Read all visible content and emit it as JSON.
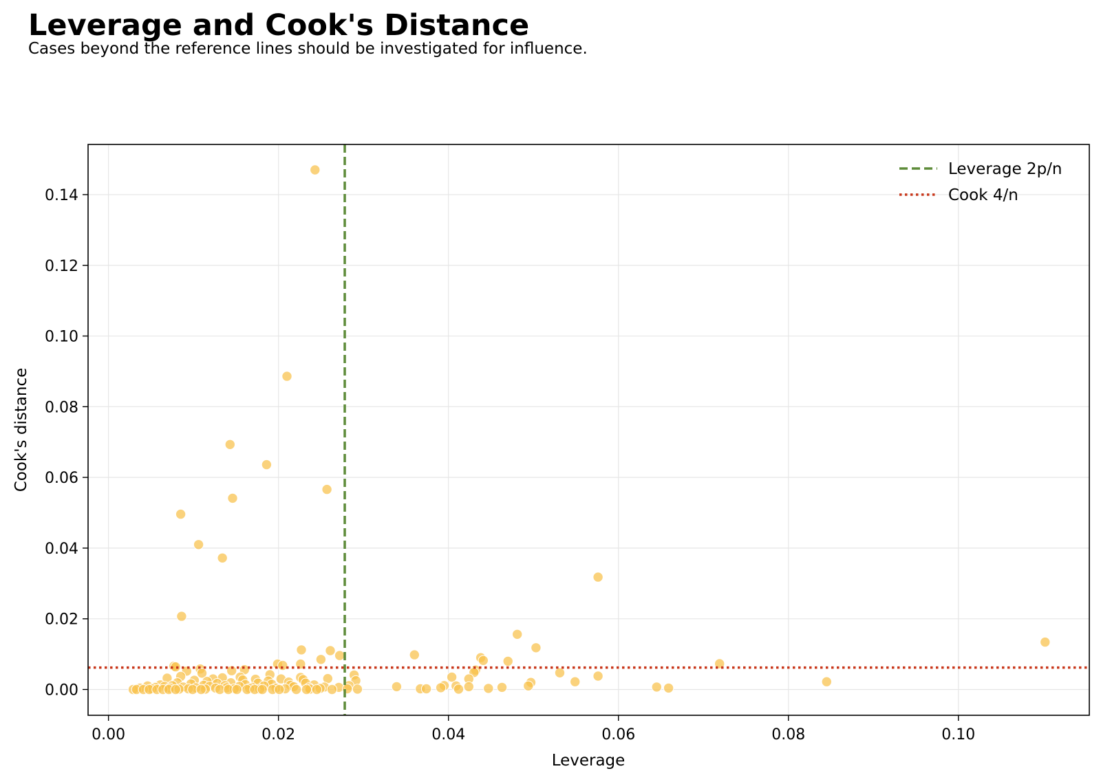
{
  "header": {
    "title": "Leverage and Cook's Distance",
    "subtitle": "Cases beyond the reference lines should be investigated for influence."
  },
  "chart_data": {
    "type": "scatter",
    "xlabel": "Leverage",
    "ylabel": "Cook's distance",
    "xlim": [
      -0.0024,
      0.1154
    ],
    "ylim": [
      -0.0073,
      0.1542
    ],
    "x_ticks": [
      0.0,
      0.02,
      0.04,
      0.06,
      0.08,
      0.1
    ],
    "x_tick_labels": [
      "0.00",
      "0.02",
      "0.04",
      "0.06",
      "0.08",
      "0.10"
    ],
    "y_ticks": [
      0.0,
      0.02,
      0.04,
      0.06,
      0.08,
      0.1,
      0.12,
      0.14
    ],
    "y_tick_labels": [
      "0.00",
      "0.02",
      "0.04",
      "0.06",
      "0.08",
      "0.10",
      "0.12",
      "0.14"
    ],
    "grid": true,
    "legend_position": "top-right",
    "point_color": "#F8C04A",
    "reference_lines": [
      {
        "name": "Leverage 2p/n",
        "orientation": "vertical",
        "value": 0.0278,
        "style": "dashed",
        "color": "#5E8C3A"
      },
      {
        "name": "Cook 4/n",
        "orientation": "horizontal",
        "value": 0.0062,
        "style": "dotted",
        "color": "#C8361A"
      }
    ],
    "legend": [
      {
        "label": "Leverage 2p/n",
        "style": "dashed",
        "color": "#5E8C3A"
      },
      {
        "label": "Cook 4/n",
        "style": "dotted",
        "color": "#C8361A"
      }
    ],
    "points": [
      [
        0.0243,
        0.147
      ],
      [
        0.021,
        0.0886
      ],
      [
        0.0143,
        0.0693
      ],
      [
        0.0186,
        0.0636
      ],
      [
        0.0257,
        0.0566
      ],
      [
        0.0146,
        0.0541
      ],
      [
        0.0085,
        0.0496
      ],
      [
        0.0106,
        0.041
      ],
      [
        0.0134,
        0.0372
      ],
      [
        0.0576,
        0.0318
      ],
      [
        0.0086,
        0.0207
      ],
      [
        0.0481,
        0.0156
      ],
      [
        0.1102,
        0.0134
      ],
      [
        0.0503,
        0.0118
      ],
      [
        0.0227,
        0.0112
      ],
      [
        0.0261,
        0.011
      ],
      [
        0.036,
        0.0098
      ],
      [
        0.0272,
        0.0096
      ],
      [
        0.0438,
        0.009
      ],
      [
        0.025,
        0.0085
      ],
      [
        0.0441,
        0.0082
      ],
      [
        0.047,
        0.008
      ],
      [
        0.0719,
        0.0073
      ],
      [
        0.0199,
        0.0072
      ],
      [
        0.0226,
        0.0072
      ],
      [
        0.0205,
        0.0068
      ],
      [
        0.0077,
        0.0066
      ],
      [
        0.0079,
        0.0064
      ],
      [
        0.0108,
        0.0058
      ],
      [
        0.016,
        0.0056
      ],
      [
        0.0432,
        0.0055
      ],
      [
        0.0145,
        0.0053
      ],
      [
        0.0092,
        0.0052
      ],
      [
        0.043,
        0.0048
      ],
      [
        0.0531,
        0.0047
      ],
      [
        0.011,
        0.0046
      ],
      [
        0.019,
        0.0042
      ],
      [
        0.0289,
        0.0041
      ],
      [
        0.0576,
        0.0038
      ],
      [
        0.0085,
        0.0037
      ],
      [
        0.0155,
        0.0035
      ],
      [
        0.0404,
        0.0035
      ],
      [
        0.0226,
        0.0034
      ],
      [
        0.0134,
        0.0033
      ],
      [
        0.0069,
        0.0032
      ],
      [
        0.0258,
        0.0031
      ],
      [
        0.0203,
        0.003
      ],
      [
        0.0123,
        0.003
      ],
      [
        0.0424,
        0.003
      ],
      [
        0.0173,
        0.0029
      ],
      [
        0.0229,
        0.0028
      ],
      [
        0.0158,
        0.0027
      ],
      [
        0.0101,
        0.0026
      ],
      [
        0.0291,
        0.0025
      ],
      [
        0.0188,
        0.0024
      ],
      [
        0.0116,
        0.0023
      ],
      [
        0.0549,
        0.0022
      ],
      [
        0.0845,
        0.0022
      ],
      [
        0.0212,
        0.0021
      ],
      [
        0.0497,
        0.002
      ],
      [
        0.0081,
        0.0019
      ],
      [
        0.0144,
        0.0019
      ],
      [
        0.0176,
        0.0018
      ],
      [
        0.0232,
        0.0018
      ],
      [
        0.0128,
        0.0017
      ],
      [
        0.0097,
        0.0016
      ],
      [
        0.0192,
        0.0015
      ],
      [
        0.0161,
        0.0014
      ],
      [
        0.0061,
        0.0013
      ],
      [
        0.0242,
        0.0013
      ],
      [
        0.0214,
        0.0012
      ],
      [
        0.0112,
        0.0012
      ],
      [
        0.0075,
        0.0011
      ],
      [
        0.0283,
        0.0011
      ],
      [
        0.0395,
        0.0011
      ],
      [
        0.0137,
        0.0011
      ],
      [
        0.0409,
        0.001
      ],
      [
        0.0046,
        0.001
      ],
      [
        0.0183,
        0.001
      ],
      [
        0.0494,
        0.001
      ],
      [
        0.0066,
        0.0009
      ],
      [
        0.0119,
        0.0009
      ],
      [
        0.0154,
        0.0009
      ],
      [
        0.0218,
        0.0008
      ],
      [
        0.0339,
        0.0008
      ],
      [
        0.0424,
        0.0008
      ],
      [
        0.0254,
        0.0007
      ],
      [
        0.0088,
        0.0007
      ],
      [
        0.0645,
        0.0007
      ],
      [
        0.0463,
        0.0006
      ],
      [
        0.0055,
        0.0006
      ],
      [
        0.0169,
        0.0006
      ],
      [
        0.0271,
        0.0006
      ],
      [
        0.0103,
        0.0005
      ],
      [
        0.0236,
        0.0005
      ],
      [
        0.0139,
        0.0005
      ],
      [
        0.0391,
        0.0005
      ],
      [
        0.0197,
        0.0004
      ],
      [
        0.0037,
        0.0004
      ],
      [
        0.0659,
        0.0004
      ],
      [
        0.0072,
        0.0004
      ],
      [
        0.0126,
        0.0004
      ],
      [
        0.0447,
        0.0003
      ],
      [
        0.0166,
        0.0003
      ],
      [
        0.0249,
        0.0003
      ],
      [
        0.0367,
        0.0002
      ],
      [
        0.0208,
        0.0002
      ],
      [
        0.0094,
        0.0002
      ],
      [
        0.0281,
        0.0002
      ],
      [
        0.0051,
        0.0002
      ],
      [
        0.0148,
        0.0002
      ],
      [
        0.0374,
        0.0002
      ],
      [
        0.0412,
        0.0001
      ],
      [
        0.0178,
        0.0001
      ],
      [
        0.0237,
        0.0001
      ],
      [
        0.0114,
        0.0001
      ],
      [
        0.0293,
        0.0001
      ],
      [
        0.0083,
        0.0001
      ],
      [
        0.0029,
        0.0
      ],
      [
        0.0033,
        0.0
      ],
      [
        0.0041,
        0.0
      ],
      [
        0.0048,
        0.0
      ],
      [
        0.0057,
        0.0
      ],
      [
        0.0064,
        0.0
      ],
      [
        0.0071,
        0.0
      ],
      [
        0.0079,
        0.0
      ],
      [
        0.0099,
        0.0
      ],
      [
        0.0109,
        0.0
      ],
      [
        0.0131,
        0.0
      ],
      [
        0.0141,
        0.0
      ],
      [
        0.0151,
        0.0
      ],
      [
        0.0163,
        0.0
      ],
      [
        0.0172,
        0.0
      ],
      [
        0.0181,
        0.0
      ],
      [
        0.0193,
        0.0
      ],
      [
        0.0201,
        0.0
      ],
      [
        0.0221,
        0.0
      ],
      [
        0.0233,
        0.0
      ],
      [
        0.0245,
        0.0
      ],
      [
        0.0263,
        0.0
      ]
    ]
  }
}
